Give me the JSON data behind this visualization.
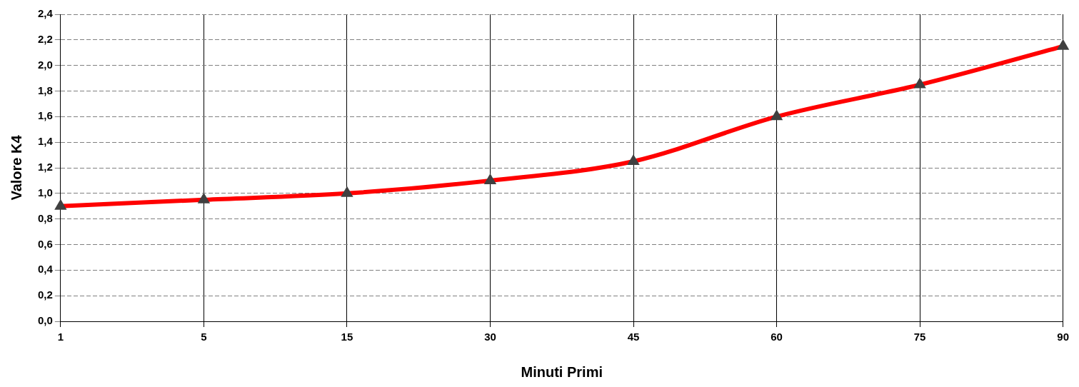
{
  "chart_data": {
    "type": "line",
    "xlabel": "Minuti Primi",
    "ylabel": "Valore K4",
    "categories": [
      "1",
      "5",
      "15",
      "30",
      "45",
      "60",
      "75",
      "90"
    ],
    "series": [
      {
        "color": "#ff0000",
        "values": [
          0.9,
          0.95,
          1.0,
          1.1,
          1.25,
          1.6,
          1.85,
          2.15
        ]
      }
    ],
    "ylim": [
      0,
      2.4
    ],
    "yticks": [
      {
        "value": 0,
        "label": "0,0"
      },
      {
        "value": 0.2,
        "label": "0,2"
      },
      {
        "value": 0.4,
        "label": "0,4"
      },
      {
        "value": 0.6,
        "label": "0,6"
      },
      {
        "value": 0.8,
        "label": "0,8"
      },
      {
        "value": 1.0,
        "label": "1,0"
      },
      {
        "value": 1.2,
        "label": "1,2"
      },
      {
        "value": 1.4,
        "label": "1,4"
      },
      {
        "value": 1.6,
        "label": "1,6"
      },
      {
        "value": 1.8,
        "label": "1,8"
      },
      {
        "value": 2.0,
        "label": "2,0"
      },
      {
        "value": 2.2,
        "label": "2,2"
      },
      {
        "value": 2.4,
        "label": "2,4"
      }
    ],
    "grid": true,
    "legend": false,
    "marker": "triangle",
    "line_style": "solid"
  }
}
